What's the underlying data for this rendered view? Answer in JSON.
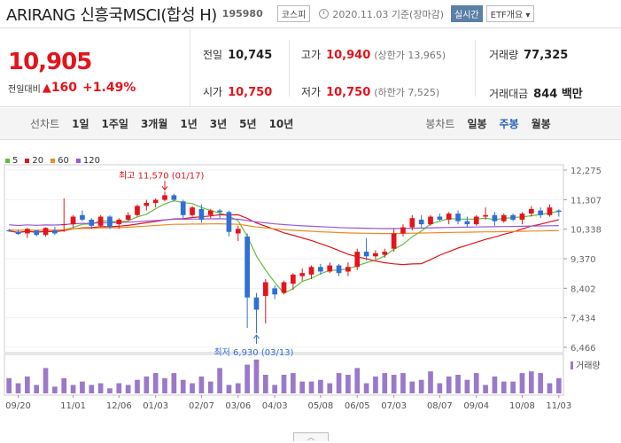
{
  "header": {
    "name": "ARIRANG 신흥국MSCI(합성 H)",
    "code": "195980",
    "market": "코스피",
    "date_text": "2020.11.03 기준(장마감)",
    "realtime": "실시간",
    "etf": "ETF개요 ▾"
  },
  "price": {
    "current": "10,905",
    "change_label": "전일대비",
    "change": "160",
    "change_pct": "+1.49%"
  },
  "stats": {
    "prev_label": "전일",
    "prev": "10,745",
    "high_label": "고가",
    "high": "10,940",
    "upper_label": "(상한가 13,965)",
    "volume_label": "거래량",
    "volume": "77,325",
    "open_label": "시가",
    "open": "10,750",
    "low_label": "저가",
    "low": "10,750",
    "lower_label": "(하한가 7,525)",
    "amount_label": "거래대금",
    "amount": "844 백만"
  },
  "tabs": {
    "line_label": "선차트",
    "line_tabs": [
      "1일",
      "1주일",
      "3개월",
      "1년",
      "3년",
      "5년",
      "10년"
    ],
    "candle_label": "봉차트",
    "candle_tabs": [
      "일봉",
      "주봉",
      "월봉"
    ],
    "candle_active": 1
  },
  "chart_data": {
    "type": "candlestick",
    "legend": [
      "5",
      "20",
      "60",
      "120"
    ],
    "legend_colors": [
      "#5fbf3a",
      "#e4141c",
      "#f08a24",
      "#9b59d6"
    ],
    "y_ticks": [
      12275,
      11307,
      10338,
      9370,
      8402,
      7434,
      6466
    ],
    "y_tick_labels": [
      "12,275",
      "11,307",
      "10,338",
      "9,370",
      "8,402",
      "7,434",
      "6,466"
    ],
    "ylim": [
      6466,
      12275
    ],
    "x_tick_labels": [
      "09/20",
      "11/01",
      "12/06",
      "01/03",
      "02/07",
      "03/06",
      "04/03",
      "05/08",
      "06/05",
      "07/03",
      "08/07",
      "09/04",
      "10/08",
      "11/03"
    ],
    "x_tick_index": [
      1,
      7,
      12,
      16,
      21,
      25,
      29,
      34,
      38,
      42,
      47,
      51,
      56,
      60
    ],
    "annotations": {
      "high_text": "최고 11,570 (01/17)",
      "low_text": "최저 6,930 (03/13)"
    },
    "volume_label": "거래량",
    "candles": [
      [
        10300,
        10350,
        10250,
        10280
      ],
      [
        10250,
        10320,
        10150,
        10180
      ],
      [
        10200,
        10380,
        10050,
        10350
      ],
      [
        10300,
        10310,
        10100,
        10150
      ],
      [
        10150,
        10400,
        10100,
        10380
      ],
      [
        10300,
        10420,
        10150,
        10200
      ],
      [
        10500,
        11350,
        10250,
        10500
      ],
      [
        10500,
        10800,
        10400,
        10750
      ],
      [
        10800,
        10950,
        10600,
        10650
      ],
      [
        10650,
        10700,
        10350,
        10450
      ],
      [
        10450,
        10800,
        10400,
        10750
      ],
      [
        10750,
        10800,
        10350,
        10400
      ],
      [
        10500,
        10700,
        10350,
        10650
      ],
      [
        10650,
        10900,
        10600,
        10800
      ],
      [
        10800,
        11150,
        10750,
        11100
      ],
      [
        11100,
        11300,
        10950,
        11200
      ],
      [
        11200,
        11350,
        11050,
        11300
      ],
      [
        11300,
        11570,
        11250,
        11450
      ],
      [
        11450,
        11500,
        11250,
        11300
      ],
      [
        11250,
        11300,
        10700,
        10800
      ],
      [
        10800,
        11100,
        10750,
        11050
      ],
      [
        11000,
        11150,
        10550,
        10650
      ],
      [
        10800,
        11000,
        10700,
        10950
      ],
      [
        10950,
        11000,
        10700,
        10900
      ],
      [
        10900,
        10950,
        10100,
        10250
      ],
      [
        10200,
        10450,
        9950,
        10350
      ],
      [
        10100,
        10200,
        7100,
        8100
      ],
      [
        8100,
        8250,
        6930,
        7700
      ],
      [
        8150,
        8700,
        7250,
        8600
      ],
      [
        8400,
        8500,
        8050,
        8200
      ],
      [
        8250,
        8650,
        8200,
        8600
      ],
      [
        8550,
        8900,
        8350,
        8850
      ],
      [
        8800,
        9050,
        8650,
        8900
      ],
      [
        8850,
        9150,
        8700,
        9100
      ],
      [
        9100,
        9200,
        8850,
        8950
      ],
      [
        8950,
        9250,
        8900,
        9150
      ],
      [
        9150,
        9200,
        8800,
        8900
      ],
      [
        8950,
        9250,
        8800,
        9100
      ],
      [
        9100,
        9700,
        9000,
        9600
      ],
      [
        9600,
        10050,
        9300,
        9450
      ],
      [
        9450,
        9650,
        9350,
        9550
      ],
      [
        9500,
        9700,
        9400,
        9600
      ],
      [
        9700,
        10350,
        9600,
        10200
      ],
      [
        10200,
        10500,
        10100,
        10400
      ],
      [
        10400,
        10800,
        10300,
        10700
      ],
      [
        10650,
        10800,
        10400,
        10500
      ],
      [
        10500,
        10800,
        10450,
        10750
      ],
      [
        10750,
        10850,
        10600,
        10650
      ],
      [
        10650,
        10900,
        10500,
        10850
      ],
      [
        10850,
        10950,
        10500,
        10600
      ],
      [
        10600,
        10750,
        10400,
        10500
      ],
      [
        10500,
        10800,
        10450,
        10750
      ],
      [
        10750,
        11050,
        10650,
        10800
      ],
      [
        10800,
        10900,
        10450,
        10600
      ],
      [
        10600,
        10850,
        10550,
        10800
      ],
      [
        10800,
        10850,
        10600,
        10650
      ],
      [
        10650,
        10900,
        10500,
        10850
      ],
      [
        10850,
        11100,
        10750,
        11000
      ],
      [
        10950,
        11050,
        10700,
        10800
      ],
      [
        10800,
        11150,
        10750,
        11050
      ],
      [
        10950,
        10990,
        10750,
        10905
      ]
    ],
    "volumes": [
      9,
      6,
      10,
      5,
      15,
      4,
      9,
      5,
      7,
      5,
      6,
      3,
      6,
      5,
      8,
      10,
      12,
      9,
      12,
      8,
      6,
      10,
      7,
      15,
      5,
      6,
      17,
      20,
      11,
      5,
      11,
      12,
      7,
      7,
      8,
      6,
      12,
      11,
      15,
      6,
      10,
      12,
      11,
      12,
      7,
      8,
      13,
      6,
      10,
      11,
      8,
      12,
      5,
      10,
      7,
      7,
      12,
      13,
      12,
      6,
      9
    ],
    "vol_max": 22
  }
}
